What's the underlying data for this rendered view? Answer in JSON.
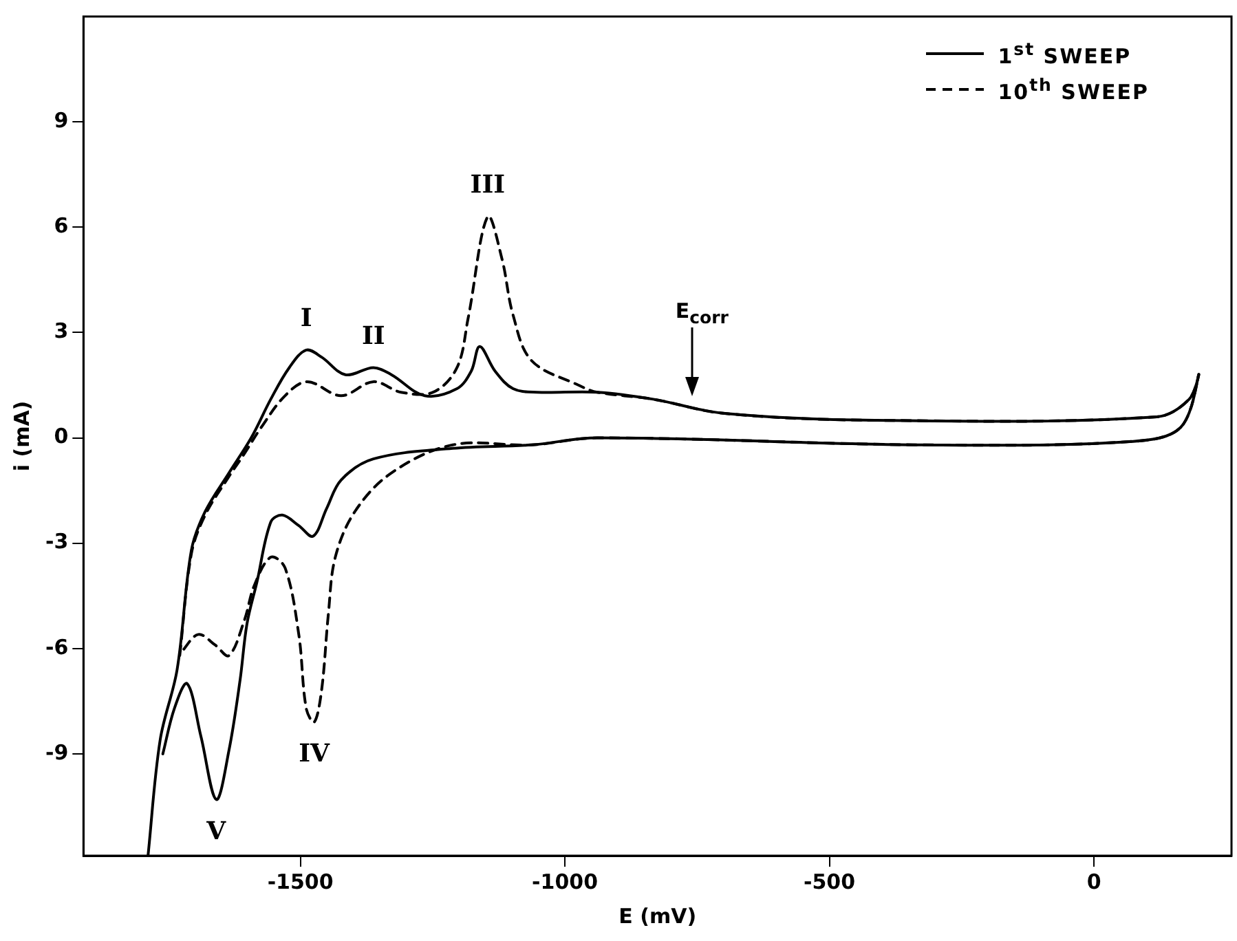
{
  "chart_data": {
    "type": "line",
    "xlabel": "E (mV)",
    "ylabel": "i (mA)",
    "xlim": [
      -1910,
      260
    ],
    "ylim": [
      -11.9,
      12
    ],
    "xticks": [
      -1500,
      -1000,
      -500,
      0
    ],
    "yticks": [
      -9,
      -6,
      -3,
      0,
      3,
      6,
      9
    ],
    "grid": false,
    "legend": "top right",
    "marker": "none",
    "series": [
      {
        "name": "1$^{st}$ SWEEP",
        "color": "#000000",
        "line_style": "solid",
        "x": [
          -1788,
          -1765,
          -1733,
          -1706,
          -1680,
          -1635,
          -1593,
          -1556,
          -1521,
          -1489,
          -1460,
          -1415,
          -1362,
          -1328,
          -1265,
          -1204,
          -1177,
          -1161,
          -1132,
          -1098,
          -1053,
          -939,
          -833,
          -701,
          -410,
          119,
          180,
          198,
          164,
          74,
          -323,
          -939,
          -1063,
          -1212,
          -1362,
          -1423,
          -1450,
          -1476,
          -1503,
          -1534,
          -1556,
          -1582,
          -1601,
          -1614,
          -1635,
          -1659,
          -1688,
          -1714,
          -1738,
          -1760
        ],
        "values": [
          -11.9,
          -8.6,
          -6.6,
          -3.2,
          -2.1,
          -1.0,
          0,
          1.1,
          2.0,
          2.5,
          2.3,
          1.8,
          2.0,
          1.8,
          1.2,
          1.4,
          1.9,
          2.6,
          1.9,
          1.4,
          1.3,
          1.3,
          1.1,
          0.7,
          0.5,
          0.6,
          1.1,
          1.8,
          0.3,
          -0.1,
          -0.2,
          0,
          -0.2,
          -0.3,
          -0.6,
          -1.2,
          -2.0,
          -2.8,
          -2.5,
          -2.2,
          -2.4,
          -4.1,
          -5.3,
          -6.9,
          -8.9,
          -10.3,
          -8.5,
          -7.0,
          -7.7,
          -9.0
        ]
      },
      {
        "name": "10$^{th}$ SWEEP",
        "color": "#000000",
        "line_style": "dashed",
        "x": [
          -1728,
          -1706,
          -1680,
          -1635,
          -1608,
          -1574,
          -1529,
          -1487,
          -1423,
          -1362,
          -1310,
          -1249,
          -1204,
          -1183,
          -1146,
          -1119,
          -1098,
          -1063,
          -974,
          -939,
          -833,
          -701,
          -410,
          119,
          180,
          198,
          164,
          74,
          -323,
          -939,
          -1063,
          -1212,
          -1328,
          -1397,
          -1434,
          -1447,
          -1460,
          -1474,
          -1489,
          -1503,
          -1529,
          -1556,
          -1587,
          -1606,
          -1635,
          -1661,
          -1693,
          -1725
        ],
        "values": [
          -6.2,
          -3.3,
          -2.2,
          -1.1,
          -0.5,
          0.3,
          1.2,
          1.6,
          1.2,
          1.6,
          1.3,
          1.3,
          2.0,
          3.4,
          6.3,
          5.1,
          3.5,
          2.2,
          1.5,
          1.3,
          1.1,
          0.7,
          0.5,
          0.6,
          1.1,
          1.8,
          0.3,
          -0.1,
          -0.2,
          0,
          -0.2,
          -0.2,
          -1.0,
          -2.1,
          -3.4,
          -5.0,
          -7.2,
          -8.1,
          -7.7,
          -5.6,
          -3.7,
          -3.4,
          -4.2,
          -5.2,
          -6.2,
          -5.9,
          -5.6,
          -6.1
        ]
      }
    ],
    "annotations": [
      {
        "text": "I",
        "x": -1489,
        "y": 2.5
      },
      {
        "text": "II",
        "x": -1362,
        "y": 2.0
      },
      {
        "text": "III",
        "x": -1146,
        "y": 6.3
      },
      {
        "text": "IV",
        "x": -1474,
        "y": -8.1
      },
      {
        "text": "V",
        "x": -1659,
        "y": -10.3
      },
      "E$_{corr}$"
    ]
  }
}
